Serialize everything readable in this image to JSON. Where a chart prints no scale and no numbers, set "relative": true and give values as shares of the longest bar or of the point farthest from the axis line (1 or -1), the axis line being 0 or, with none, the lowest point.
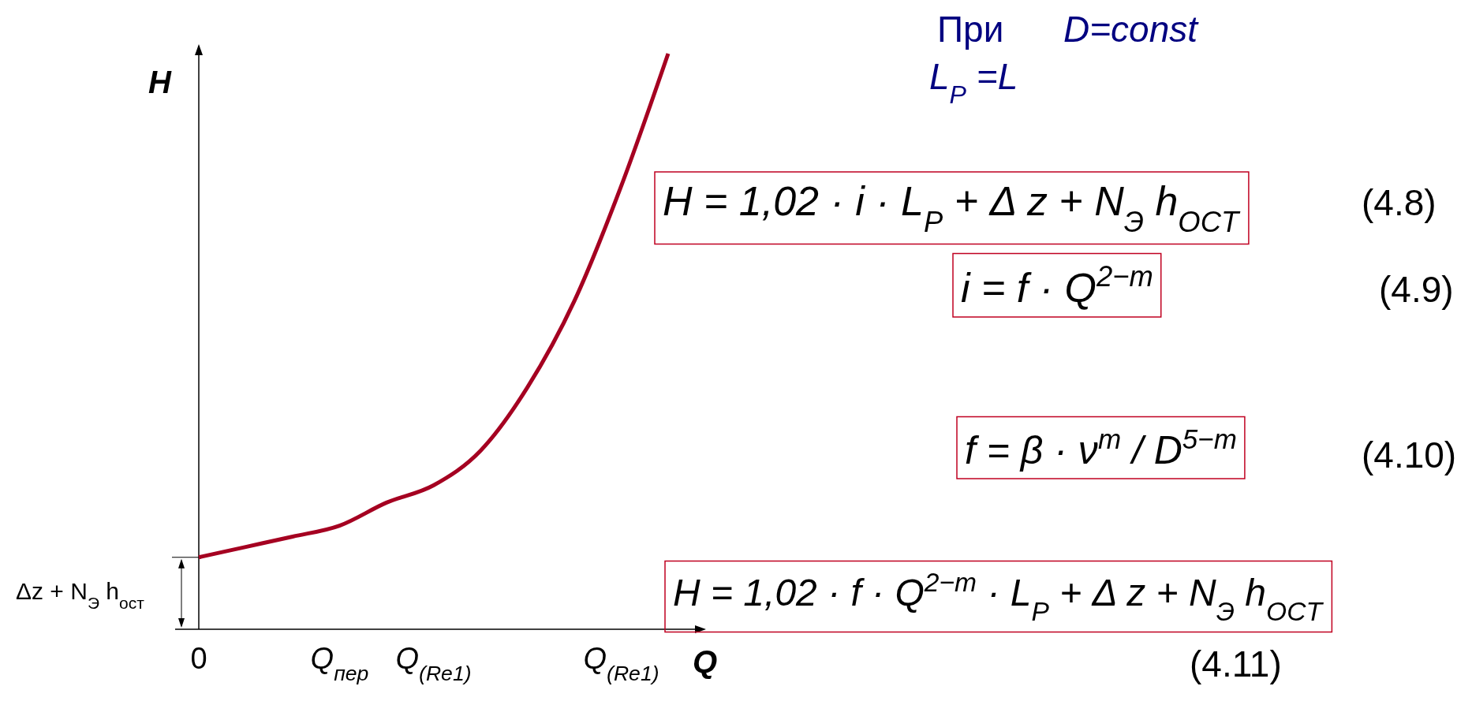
{
  "chart_data": {
    "type": "line",
    "relative": true,
    "xlabel": "Q",
    "ylabel": "H",
    "categories": [
      "0",
      null,
      null,
      "Q$_{пер}$",
      null,
      "Q$_{(Re1)}$",
      null,
      null,
      null,
      "Q$_{(Re1)}$",
      null
    ],
    "series": [
      {
        "color": "#a50021",
        "values": [
          0.125,
          0.143,
          0.161,
          0.18,
          0.22,
          0.25,
          0.31,
          0.42,
          0.57,
          0.77,
          1
        ]
      }
    ],
    "annotations": [
      "Δz + N$_{Э}$h$_{ост}$",
      "При",
      "D=const",
      "L$_{P}$=L",
      "H = 1,02 · i · L$_{P}$ + Δ z + N$_{Э}$h$_{OCT}$",
      "(4.8)",
      "i = f · Q$^{2−m}$",
      "(4.9)",
      "f = β · ν$^{m}$ / D$^{5−m}$",
      "(4.10)",
      "H = 1,02 · f · Q$^{2−m}$ · L$_{P}$ + Δ z + N$_{Э}$h$_{OCT}$",
      "(4.11)"
    ],
    "line_style": "solid"
  }
}
